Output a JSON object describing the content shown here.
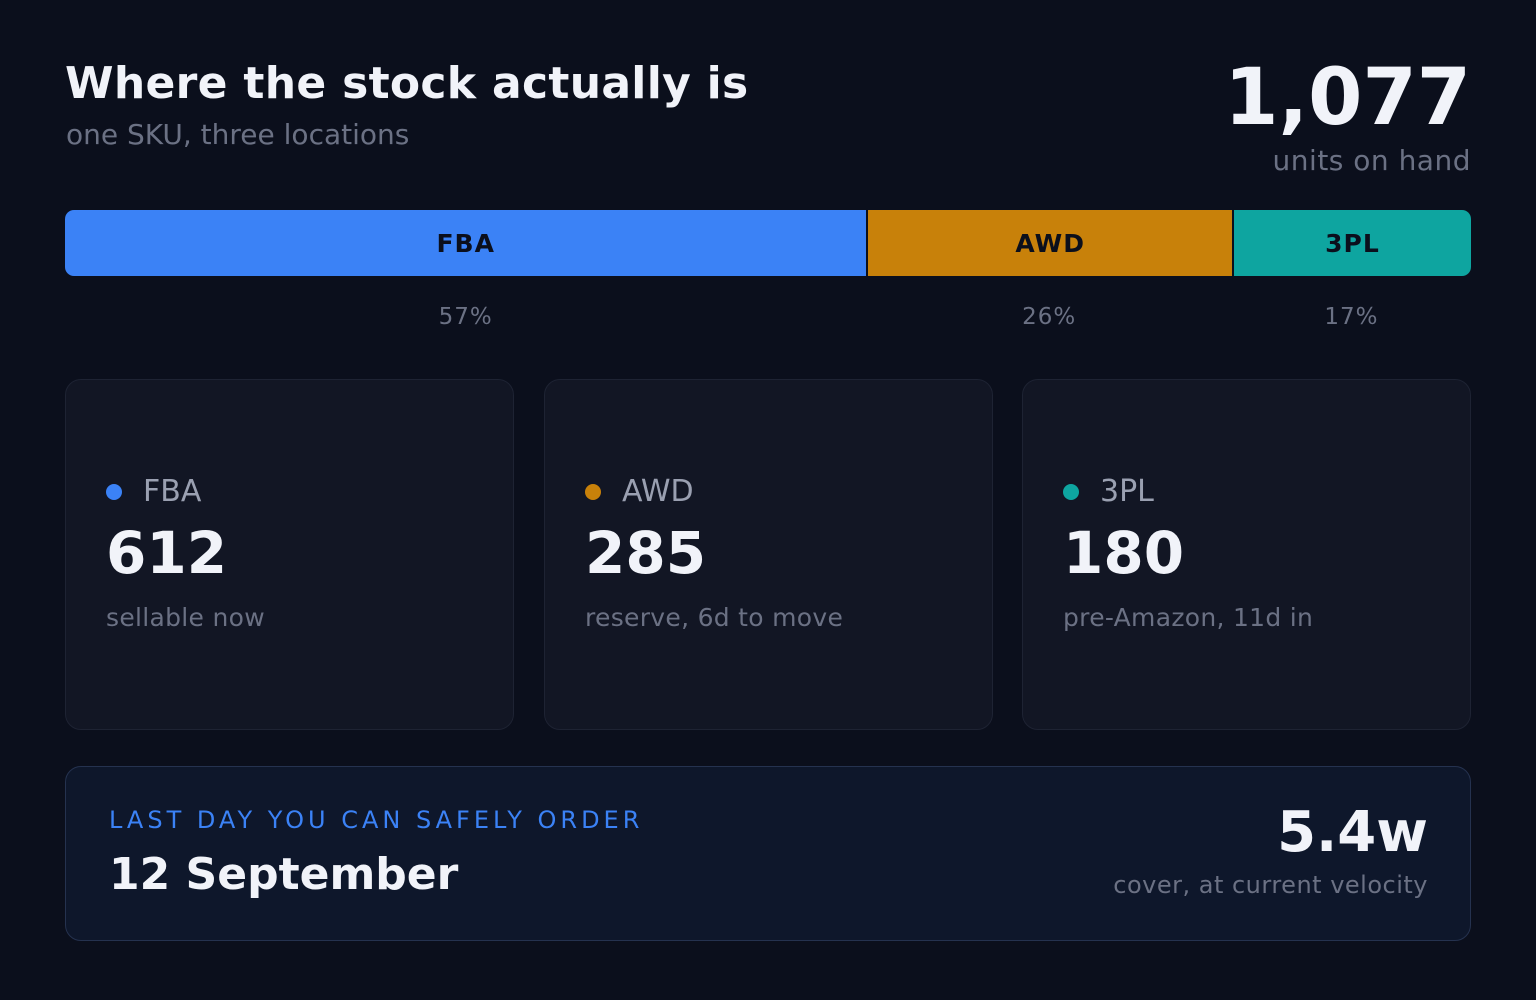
{
  "header": {
    "title": "Where the stock actually is",
    "subtitle": "one SKU, three locations",
    "total_units": "1,077",
    "total_label": "units on hand"
  },
  "colors": {
    "background": "#0b0f1c",
    "fba": "#3b82f6",
    "awd": "#c8810a",
    "threepl": "#0ea5a0",
    "accent_label": "#3b82f6"
  },
  "stock_bar": {
    "segments": [
      {
        "label": "FBA",
        "share": 0.57,
        "percent_label": "57%",
        "color": "#3b82f6"
      },
      {
        "label": "AWD",
        "share": 0.26,
        "percent_label": "26%",
        "color": "#c8810a"
      },
      {
        "label": "3PL",
        "share": 0.17,
        "percent_label": "17%",
        "color": "#0ea5a0"
      }
    ]
  },
  "locations": [
    {
      "name": "FBA",
      "value": "612",
      "note": "sellable now",
      "color": "#3b82f6"
    },
    {
      "name": "AWD",
      "value": "285",
      "note": "reserve, 6d to move",
      "color": "#c8810a"
    },
    {
      "name": "3PL",
      "value": "180",
      "note": "pre-Amazon, 11d in",
      "color": "#0ea5a0"
    }
  ],
  "order": {
    "label": "LAST DAY YOU CAN SAFELY ORDER",
    "date": "12 September",
    "cover_value": "5.4w",
    "cover_label": "cover, at current velocity"
  }
}
